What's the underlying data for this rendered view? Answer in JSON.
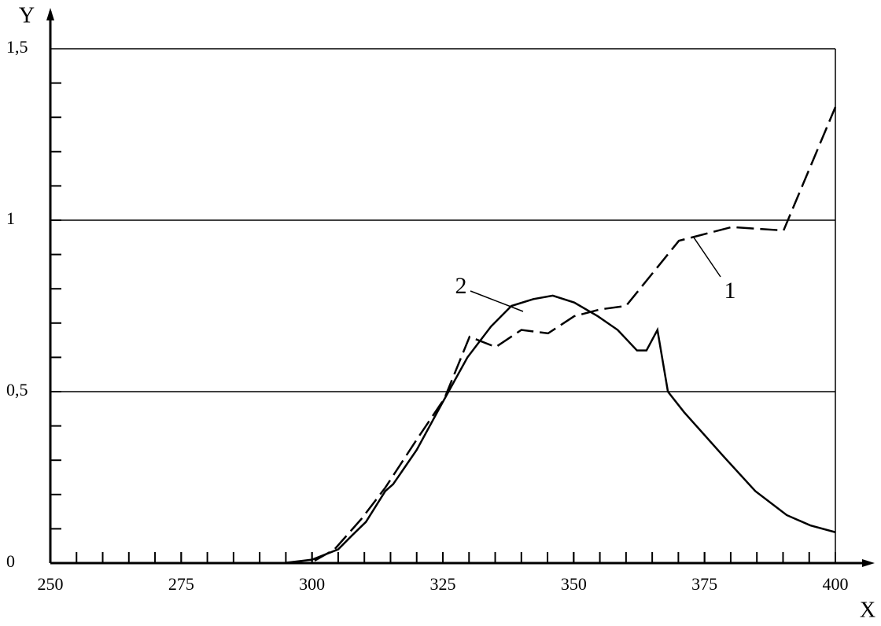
{
  "chart_data": {
    "type": "line",
    "x_label": "X",
    "y_label": "Y",
    "xlim": [
      250,
      400
    ],
    "ylim": [
      0,
      1.5
    ],
    "xticks": [
      250,
      275,
      300,
      325,
      350,
      375,
      400
    ],
    "yticks": [
      0,
      {
        "value": 0.5,
        "label": "0,5"
      },
      1,
      {
        "value": 1.5,
        "label": "1,5"
      }
    ],
    "grid": true,
    "series": [
      {
        "name": "1",
        "color": "#000000",
        "dash": true,
        "x": [
          300.5,
          304.3,
          309.5,
          314,
          320,
          325.3,
          330.1,
          335.1,
          340,
          345.1,
          350.1,
          355.1,
          360,
          370.1,
          380.2,
          390.1,
          400
        ],
        "values": [
          0.007,
          0.04,
          0.13,
          0.22,
          0.36,
          0.48,
          0.66,
          0.63,
          0.68,
          0.67,
          0.72,
          0.74,
          0.75,
          0.94,
          0.98,
          0.97,
          1.33
        ]
      },
      {
        "name": "2",
        "color": "#000000",
        "dash": false,
        "x": [
          294.5,
          300,
          305,
          307.6,
          310.3,
          314,
          315.5,
          320,
          325,
          329.7,
          334.2,
          338.1,
          342.3,
          346,
          350.1,
          354.6,
          358.4,
          362.1,
          363.9,
          366,
          368,
          371.1,
          378.7,
          384.7,
          390.7,
          395.2,
          400
        ],
        "values": [
          0,
          0.01,
          0.04,
          0.08,
          0.12,
          0.21,
          0.23,
          0.33,
          0.47,
          0.6,
          0.69,
          0.75,
          0.77,
          0.78,
          0.76,
          0.72,
          0.68,
          0.62,
          0.62,
          0.68,
          0.5,
          0.44,
          0.31,
          0.21,
          0.14,
          0.11,
          0.09
        ]
      }
    ]
  }
}
